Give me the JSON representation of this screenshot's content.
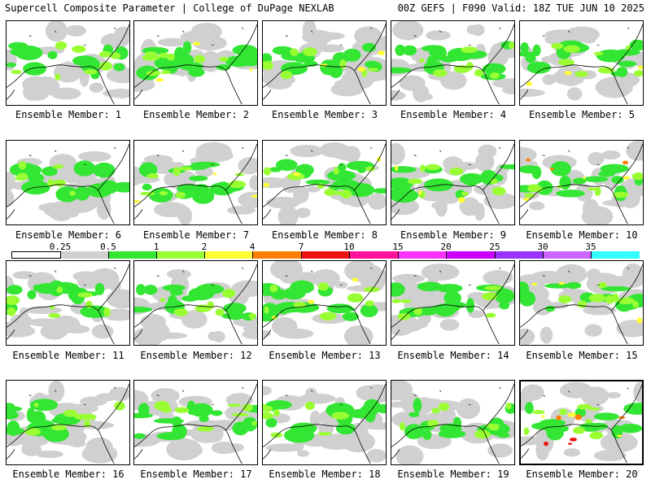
{
  "header": {
    "left_title": "Supercell Composite Parameter | College of DuPage NEXLAB",
    "right_title": "00Z GEFS | F090 Valid: 18Z TUE JUN 10 2025"
  },
  "colorbar": {
    "ticks": [
      "0.25",
      "0.5",
      "1",
      "2",
      "4",
      "7",
      "10",
      "15",
      "20",
      "25",
      "30",
      "35"
    ],
    "colors": [
      "#d0d0d0",
      "#33e633",
      "#99ff33",
      "#ffff33",
      "#ff8000",
      "#ee1111",
      "#ff1199",
      "#ff33ff",
      "#cc00ff",
      "#9933ff",
      "#cc66ff",
      "#33ffff"
    ]
  },
  "members": [
    {
      "label": "Ensemble Member: 1",
      "intensity": 2
    },
    {
      "label": "Ensemble Member: 2",
      "intensity": 3
    },
    {
      "label": "Ensemble Member: 3",
      "intensity": 3
    },
    {
      "label": "Ensemble Member: 4",
      "intensity": 2
    },
    {
      "label": "Ensemble Member: 5",
      "intensity": 3
    },
    {
      "label": "Ensemble Member: 6",
      "intensity": 2
    },
    {
      "label": "Ensemble Member: 7",
      "intensity": 3
    },
    {
      "label": "Ensemble Member: 8",
      "intensity": 3
    },
    {
      "label": "Ensemble Member: 9",
      "intensity": 3
    },
    {
      "label": "Ensemble Member: 10",
      "intensity": 4
    },
    {
      "label": "Ensemble Member: 11",
      "intensity": 1
    },
    {
      "label": "Ensemble Member: 12",
      "intensity": 2
    },
    {
      "label": "Ensemble Member: 13",
      "intensity": 3
    },
    {
      "label": "Ensemble Member: 14",
      "intensity": 2
    },
    {
      "label": "Ensemble Member: 15",
      "intensity": 3
    },
    {
      "label": "Ensemble Member: 16",
      "intensity": 2
    },
    {
      "label": "Ensemble Member: 17",
      "intensity": 2
    },
    {
      "label": "Ensemble Member: 18",
      "intensity": 2
    },
    {
      "label": "Ensemble Member: 19",
      "intensity": 2
    },
    {
      "label": "Ensemble Member: 20",
      "intensity": 5,
      "selected": true
    }
  ]
}
